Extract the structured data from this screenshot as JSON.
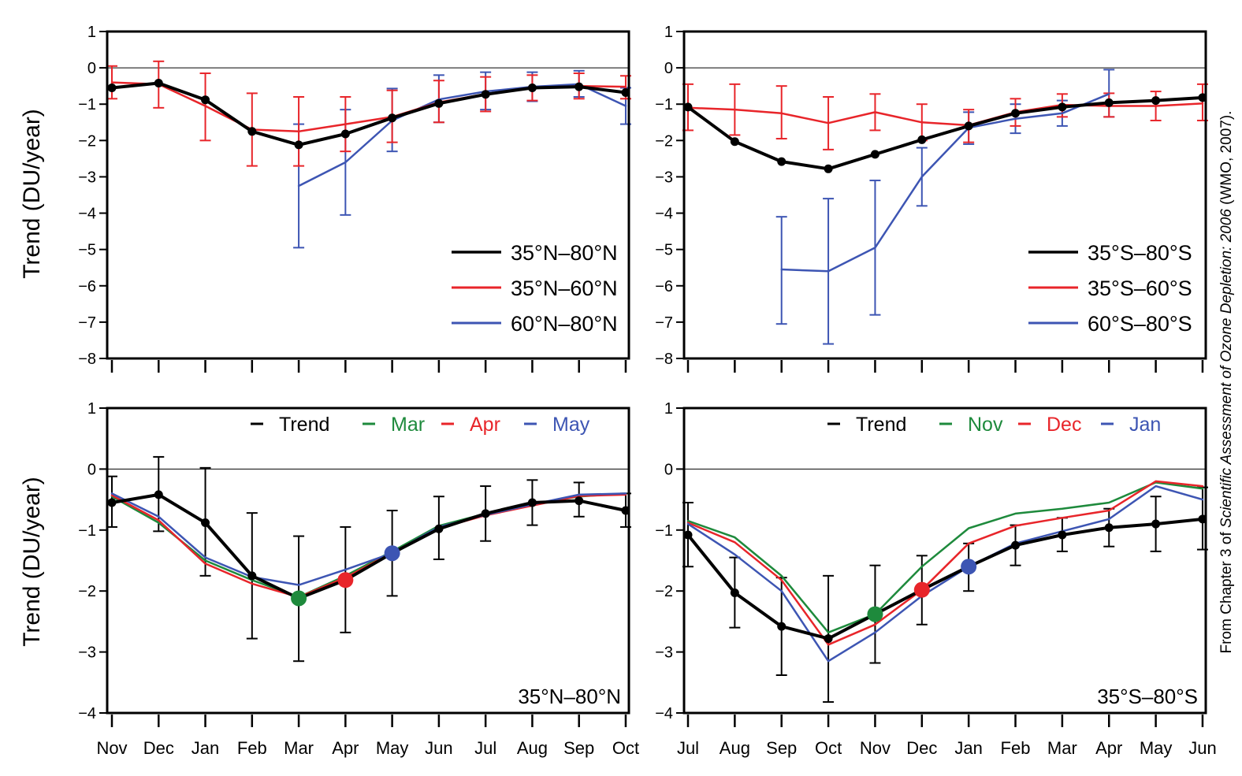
{
  "figure": {
    "ylabel_top": "Trend  (DU/year)",
    "ylabel_bottom": "Trend  (DU/year)",
    "credit_prefix": "From Chapter 3 of ",
    "credit_title": "Scientific Assessment of Ozone Depletion: 2006",
    "credit_suffix": " (WMO, 2007)."
  },
  "chart_data": [
    {
      "id": "nh_top",
      "type": "line",
      "ylim": [
        -8,
        1
      ],
      "yticks": [
        1,
        0,
        -1,
        -2,
        -3,
        -4,
        -5,
        -6,
        -7,
        -8
      ],
      "categories": [
        "Nov",
        "Dec",
        "Jan",
        "Feb",
        "Mar",
        "Apr",
        "May",
        "Jun",
        "Jul",
        "Aug",
        "Sep",
        "Oct"
      ],
      "show_x_labels": false,
      "legend": "bottom-right",
      "series": [
        {
          "name": "60°N–80°N",
          "color": "#3d55b3",
          "width": 2.5,
          "markers": false,
          "cap_width": 7,
          "values": [
            null,
            null,
            null,
            null,
            -3.25,
            -2.6,
            -1.45,
            -0.87,
            -0.65,
            -0.52,
            -0.45,
            -1.05
          ],
          "err_low": [
            null,
            null,
            null,
            null,
            -4.95,
            -4.05,
            -2.3,
            -1.5,
            -1.15,
            -0.92,
            -0.8,
            -1.55
          ],
          "err_high": [
            null,
            null,
            null,
            null,
            -1.55,
            -1.15,
            -0.57,
            -0.2,
            -0.12,
            -0.12,
            -0.08,
            -0.55
          ]
        },
        {
          "name": "35°N–60°N",
          "color": "#e8252a",
          "width": 2.5,
          "markers": false,
          "cap_width": 7,
          "values": [
            -0.4,
            -0.45,
            -1.05,
            -1.7,
            -1.75,
            -1.55,
            -1.35,
            -0.95,
            -0.72,
            -0.55,
            -0.5,
            -0.52
          ],
          "err_low": [
            -0.85,
            -1.1,
            -2.0,
            -2.7,
            -2.7,
            -2.3,
            -2.05,
            -1.5,
            -1.2,
            -0.9,
            -0.85,
            -0.85
          ],
          "err_high": [
            0.05,
            0.18,
            -0.15,
            -0.7,
            -0.8,
            -0.8,
            -0.62,
            -0.35,
            -0.25,
            -0.2,
            -0.15,
            -0.22
          ]
        },
        {
          "name": "35°N–80°N",
          "color": "#000000",
          "width": 4,
          "markers": true,
          "cap_width": 0,
          "values": [
            -0.55,
            -0.42,
            -0.88,
            -1.75,
            -2.12,
            -1.82,
            -1.38,
            -0.98,
            -0.73,
            -0.55,
            -0.52,
            -0.68
          ]
        }
      ]
    },
    {
      "id": "sh_top",
      "type": "line",
      "ylim": [
        -8,
        1
      ],
      "yticks": [
        1,
        0,
        -1,
        -2,
        -3,
        -4,
        -5,
        -6,
        -7,
        -8
      ],
      "categories": [
        "Jul",
        "Aug",
        "Sep",
        "Oct",
        "Nov",
        "Dec",
        "Jan",
        "Feb",
        "Mar",
        "Apr",
        "May",
        "Jun"
      ],
      "show_x_labels": false,
      "legend": "bottom-right",
      "series": [
        {
          "name": "60°S–80°S",
          "color": "#3d55b3",
          "width": 2.5,
          "markers": false,
          "cap_width": 7,
          "values": [
            null,
            null,
            -5.55,
            -5.6,
            -4.95,
            -3.0,
            -1.65,
            -1.4,
            -1.25,
            -0.72,
            null,
            null
          ],
          "err_low": [
            null,
            null,
            -7.05,
            -7.6,
            -6.8,
            -3.8,
            -2.1,
            -1.8,
            -1.6,
            -1.35,
            null,
            null
          ],
          "err_high": [
            null,
            null,
            -4.1,
            -3.6,
            -3.1,
            -2.2,
            -1.22,
            -1.0,
            -0.9,
            -0.05,
            null,
            null
          ]
        },
        {
          "name": "35°S–60°S",
          "color": "#e8252a",
          "width": 2.5,
          "markers": false,
          "cap_width": 7,
          "values": [
            -1.1,
            -1.15,
            -1.25,
            -1.52,
            -1.22,
            -1.5,
            -1.58,
            -1.22,
            -1.02,
            -1.05,
            -1.05,
            -0.98
          ],
          "err_low": [
            -1.72,
            -1.85,
            -1.95,
            -2.25,
            -1.72,
            -2.0,
            -2.05,
            -1.6,
            -1.35,
            -1.35,
            -1.45,
            -1.45
          ],
          "err_high": [
            -0.45,
            -0.45,
            -0.5,
            -0.8,
            -0.72,
            -1.0,
            -1.15,
            -0.85,
            -0.72,
            -0.7,
            -0.65,
            -0.45
          ]
        },
        {
          "name": "35°S–80°S",
          "color": "#000000",
          "width": 4,
          "markers": true,
          "cap_width": 0,
          "values": [
            -1.08,
            -2.03,
            -2.58,
            -2.78,
            -2.38,
            -1.98,
            -1.6,
            -1.25,
            -1.08,
            -0.96,
            -0.9,
            -0.82
          ]
        }
      ]
    },
    {
      "id": "nh_bottom",
      "type": "line",
      "ylim": [
        -4,
        1
      ],
      "yticks": [
        1,
        0,
        -1,
        -2,
        -3,
        -4
      ],
      "categories": [
        "Nov",
        "Dec",
        "Jan",
        "Feb",
        "Mar",
        "Apr",
        "May",
        "Jun",
        "Jul",
        "Aug",
        "Sep",
        "Oct"
      ],
      "show_x_labels": true,
      "legend": "top-right",
      "region_label": "35°N–80°N",
      "series": [
        {
          "name": "Mar",
          "color": "#1e8a3c",
          "width": 2.5,
          "markers": false,
          "cap_width": 0,
          "values": [
            -0.45,
            -0.88,
            -1.5,
            -1.82,
            -2.1,
            -1.75,
            -1.35,
            -0.93,
            -0.73,
            -0.58,
            -0.45,
            -0.4
          ]
        },
        {
          "name": "Apr",
          "color": "#e8252a",
          "width": 2.5,
          "markers": false,
          "cap_width": 0,
          "values": [
            -0.43,
            -0.84,
            -1.55,
            -1.88,
            -2.1,
            -1.78,
            -1.37,
            -0.97,
            -0.76,
            -0.6,
            -0.44,
            -0.42
          ]
        },
        {
          "name": "May",
          "color": "#3d55b3",
          "width": 2.5,
          "markers": false,
          "cap_width": 0,
          "values": [
            -0.4,
            -0.78,
            -1.45,
            -1.77,
            -1.9,
            -1.65,
            -1.38,
            -0.95,
            -0.75,
            -0.58,
            -0.42,
            -0.4
          ]
        },
        {
          "name": "Trend",
          "color": "#000000",
          "width": 4,
          "markers": true,
          "cap_width": 7,
          "values": [
            -0.55,
            -0.42,
            -0.88,
            -1.75,
            -2.12,
            -1.82,
            -1.38,
            -0.98,
            -0.73,
            -0.55,
            -0.52,
            -0.68
          ],
          "err_low": [
            -0.95,
            -1.02,
            -1.75,
            -2.78,
            -3.15,
            -2.68,
            -2.08,
            -1.48,
            -1.18,
            -0.92,
            -0.78,
            -0.95
          ],
          "err_high": [
            -0.12,
            0.2,
            0.02,
            -0.72,
            -1.1,
            -0.95,
            -0.68,
            -0.45,
            -0.28,
            -0.18,
            -0.22,
            -0.4
          ]
        }
      ],
      "highlights": [
        {
          "index": 4,
          "color": "#1e8a3c"
        },
        {
          "index": 5,
          "color": "#e8252a"
        },
        {
          "index": 6,
          "color": "#3d55b3"
        }
      ]
    },
    {
      "id": "sh_bottom",
      "type": "line",
      "ylim": [
        -4,
        1
      ],
      "yticks": [
        1,
        0,
        -1,
        -2,
        -3,
        -4
      ],
      "categories": [
        "Jul",
        "Aug",
        "Sep",
        "Oct",
        "Nov",
        "Dec",
        "Jan",
        "Feb",
        "Mar",
        "Apr",
        "May",
        "Jun"
      ],
      "show_x_labels": true,
      "legend": "top-right",
      "region_label": "35°S–80°S",
      "series": [
        {
          "name": "Nov",
          "color": "#1e8a3c",
          "width": 2.5,
          "markers": false,
          "cap_width": 0,
          "values": [
            -0.85,
            -1.12,
            -1.75,
            -2.68,
            -2.38,
            -1.6,
            -0.97,
            -0.73,
            -0.65,
            -0.55,
            -0.22,
            -0.32
          ]
        },
        {
          "name": "Dec",
          "color": "#e8252a",
          "width": 2.5,
          "markers": false,
          "cap_width": 0,
          "values": [
            -0.88,
            -1.2,
            -1.82,
            -2.88,
            -2.55,
            -1.98,
            -1.22,
            -0.93,
            -0.8,
            -0.68,
            -0.2,
            -0.28
          ]
        },
        {
          "name": "Jan",
          "color": "#3d55b3",
          "width": 2.5,
          "markers": false,
          "cap_width": 0,
          "values": [
            -0.9,
            -1.4,
            -2.0,
            -3.15,
            -2.68,
            -2.08,
            -1.6,
            -1.22,
            -1.02,
            -0.82,
            -0.28,
            -0.5
          ]
        },
        {
          "name": "Trend",
          "color": "#000000",
          "width": 4,
          "markers": true,
          "cap_width": 7,
          "values": [
            -1.08,
            -2.03,
            -2.58,
            -2.78,
            -2.38,
            -1.98,
            -1.6,
            -1.25,
            -1.08,
            -0.96,
            -0.9,
            -0.82
          ],
          "err_low": [
            -1.6,
            -2.6,
            -3.38,
            -3.82,
            -3.18,
            -2.55,
            -2.0,
            -1.58,
            -1.35,
            -1.27,
            -1.35,
            -1.32
          ],
          "err_high": [
            -0.55,
            -1.45,
            -1.78,
            -1.75,
            -1.58,
            -1.42,
            -1.22,
            -0.92,
            -0.8,
            -0.65,
            -0.45,
            -0.3
          ]
        }
      ],
      "highlights": [
        {
          "index": 4,
          "color": "#1e8a3c"
        },
        {
          "index": 5,
          "color": "#e8252a"
        },
        {
          "index": 6,
          "color": "#3d55b3"
        }
      ]
    }
  ]
}
